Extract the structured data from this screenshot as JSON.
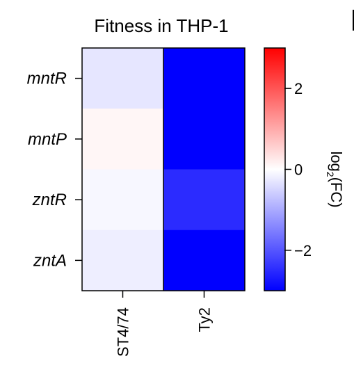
{
  "chart_data": {
    "type": "heatmap",
    "title": "Fitness in THP-1",
    "rows": [
      "mntR",
      "mntP",
      "zntR",
      "zntA"
    ],
    "columns": [
      "ST4/74",
      "Ty2"
    ],
    "values": [
      [
        -0.3,
        -3.1
      ],
      [
        0.1,
        -3.1
      ],
      [
        -0.1,
        -2.5
      ],
      [
        -0.2,
        -3.1
      ]
    ],
    "colorbar": {
      "label_main": "log",
      "label_sub": "2",
      "label_rest": "(FC)",
      "min": -3,
      "max": 3,
      "ticks": [
        2,
        0,
        -2
      ],
      "tick_labels": [
        "2",
        "0",
        "−2"
      ],
      "low_color": "#0000ff",
      "mid_color": "#ffffff",
      "high_color": "#ff0000"
    }
  }
}
